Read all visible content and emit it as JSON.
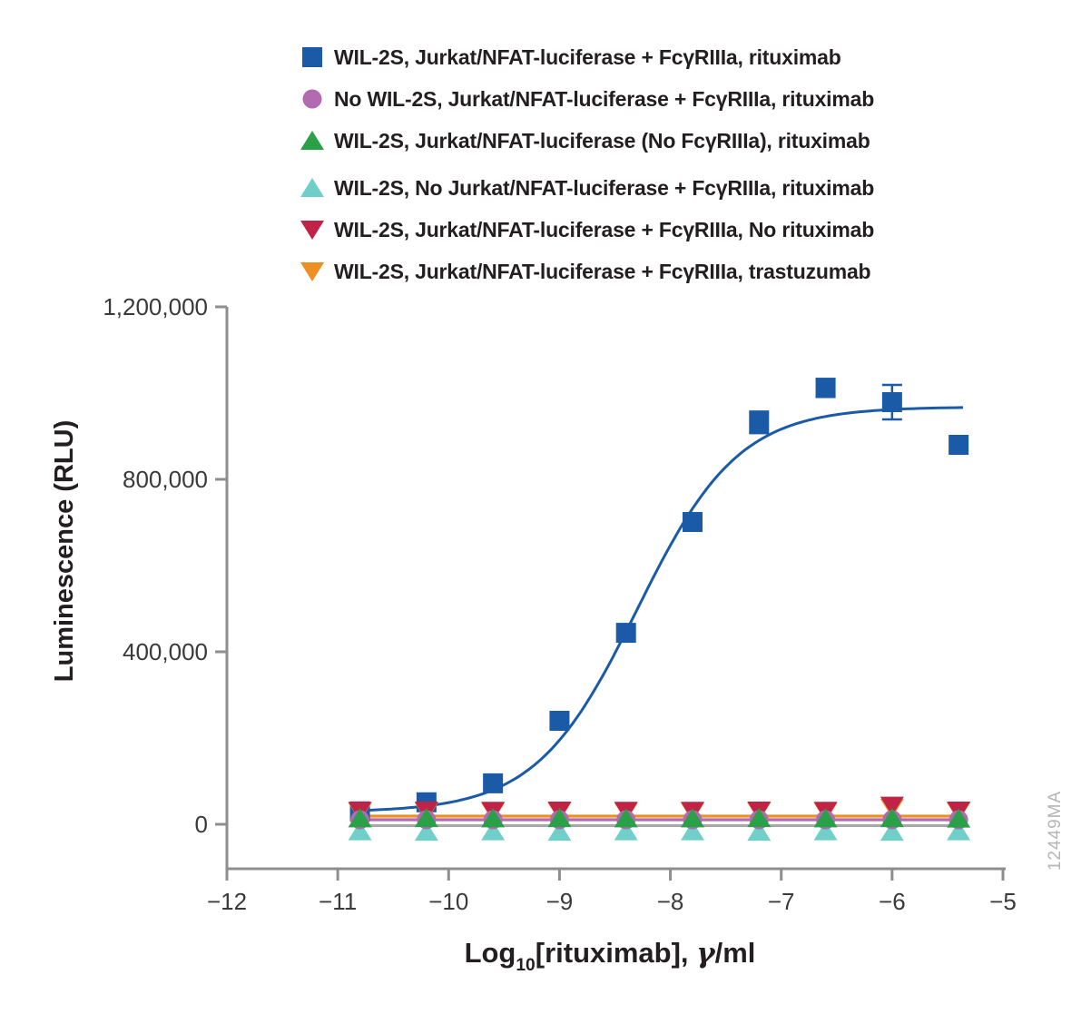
{
  "figure": {
    "watermark": "12449MA",
    "background": "#ffffff"
  },
  "style": {
    "axis_color": "#8e8e8e",
    "text_color": "#231f20",
    "tick_label_color": "#3a3a3a",
    "watermark_color": "#b5b5b5",
    "gray_line_color": "#a8a8a8"
  },
  "legend": {
    "items": [
      {
        "label": "WIL-2S, Jurkat/NFAT-luciferase + FcγRIIIa, rituximab",
        "marker": "square",
        "color": "#1a5aa6",
        "group": 1
      },
      {
        "label": "No WIL-2S, Jurkat/NFAT-luciferase + FcγRIIIa, rituximab",
        "marker": "circle",
        "color": "#b26ab0",
        "group": 1
      },
      {
        "label": "WIL-2S, Jurkat/NFAT-luciferase (No FcγRIIIa), rituximab",
        "marker": "triangle-up",
        "color": "#2aa148",
        "group": 1
      },
      {
        "label": "WIL-2S, No Jurkat/NFAT-luciferase + FcγRIIIa, rituximab",
        "marker": "triangle-up",
        "color": "#70cfc9",
        "group": 2
      },
      {
        "label": "WIL-2S, Jurkat/NFAT-luciferase + FcγRIIIa, No rituximab",
        "marker": "triangle-down",
        "color": "#c12346",
        "group": 2
      },
      {
        "label": "WIL-2S, Jurkat/NFAT-luciferase + FcγRIIIa, trastuzumab",
        "marker": "triangle-down",
        "color": "#ef8e23",
        "group": 2
      }
    ]
  },
  "chart_data": {
    "type": "scatter",
    "title": "",
    "xlabel": "Log10[rituximab], γ/ml",
    "xlabel_parts": {
      "pre": "Log",
      "sub": "10",
      "mid": "[rituximab], ",
      "gamma": "γ",
      "post": "/ml"
    },
    "ylabel": "Luminescence (RLU)",
    "xlim": [
      -12,
      -5
    ],
    "ylim": [
      0,
      1200000
    ],
    "x_ticks": [
      -12,
      -11,
      -10,
      -9,
      -8,
      -7,
      -6,
      -5
    ],
    "y_ticks": [
      0,
      400000,
      800000,
      1200000
    ],
    "y_tick_labels": [
      "0",
      "400,000",
      "800,000",
      "1,200,000"
    ],
    "grid": false,
    "legend_position": "top-left",
    "x": [
      -10.8,
      -10.2,
      -9.6,
      -9.0,
      -8.4,
      -7.8,
      -7.2,
      -6.6,
      -6.0,
      -5.4
    ],
    "series": [
      {
        "name": "WIL-2S, Jurkat/NFAT-luciferase + FcγRIIIa, rituximab",
        "marker": "square",
        "color": "#1a5aa6",
        "values": [
          30000,
          51000,
          95000,
          240000,
          444000,
          701000,
          932000,
          1012000,
          979000,
          880000
        ],
        "yerr": [
          0,
          0,
          0,
          0,
          0,
          0,
          25000,
          21000,
          40000,
          0
        ],
        "fit_curve": {
          "type": "4PL",
          "bottom": 28000,
          "top": 968000,
          "logEC50": -8.3,
          "hill": 0.95
        }
      },
      {
        "name": "No WIL-2S, Jurkat/NFAT-luciferase + FcγRIIIa, rituximab",
        "marker": "circle",
        "color": "#b26ab0",
        "values": [
          10500,
          10500,
          10500,
          10500,
          10500,
          10500,
          10500,
          10500,
          10500,
          10500
        ],
        "flat_line_y": 10500,
        "line_color": "#b26ab0"
      },
      {
        "name": "WIL-2S, Jurkat/NFAT-luciferase (No FcγRIIIa), rituximab",
        "marker": "triangle-up",
        "color": "#2aa148",
        "values": [
          14000,
          14500,
          14000,
          14500,
          14000,
          14000,
          14500,
          14000,
          14500,
          13500
        ]
      },
      {
        "name": "WIL-2S, No Jurkat/NFAT-luciferase + FcγRIIIa, rituximab",
        "marker": "triangle-up",
        "color": "#70cfc9",
        "values": [
          -16000,
          -17000,
          -16000,
          -17000,
          -16000,
          -16000,
          -17000,
          -16000,
          -17000,
          -16000
        ],
        "flat_line_y": -3000,
        "line_color": "#a8a8a8"
      },
      {
        "name": "WIL-2S, Jurkat/NFAT-luciferase + FcγRIIIa, No rituximab",
        "marker": "triangle-down",
        "color": "#c12346",
        "values": [
          31000,
          31500,
          31000,
          31500,
          31000,
          31000,
          31500,
          31000,
          43000,
          31500
        ]
      },
      {
        "name": "WIL-2S, Jurkat/NFAT-luciferase + FcγRIIIa, trastuzumab",
        "marker": "triangle-down",
        "color": "#ef8e23",
        "values": [
          29000,
          29500,
          29000,
          29500,
          29000,
          29000,
          29500,
          29000,
          38000,
          29500
        ],
        "flat_line_y": 19000,
        "line_color": "#ef8e23"
      }
    ]
  }
}
